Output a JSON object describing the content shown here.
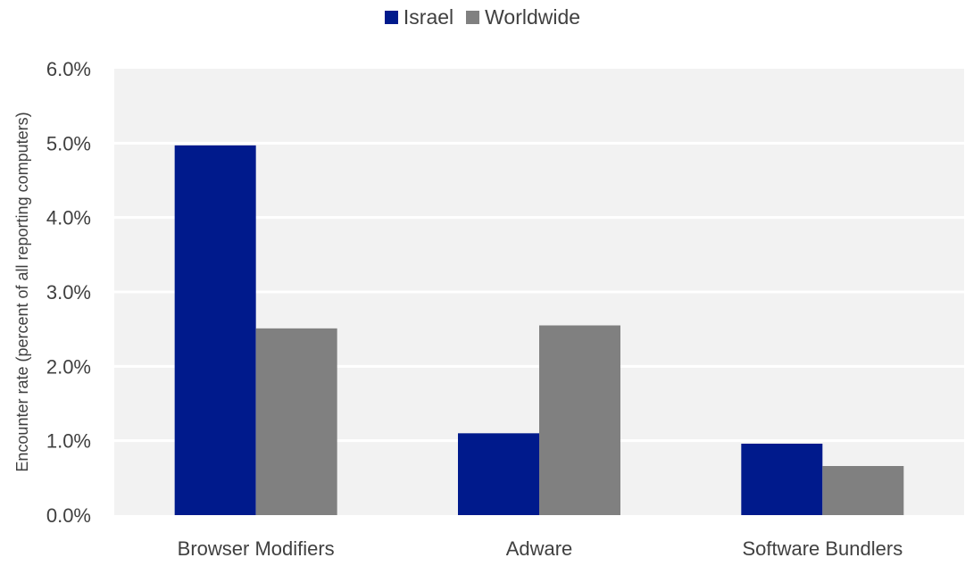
{
  "chart_data": {
    "type": "bar",
    "categories": [
      "Browser Modifiers",
      "Adware",
      "Software Bundlers"
    ],
    "series": [
      {
        "name": "Israel",
        "color": "#001a8c",
        "values": [
          4.97,
          1.1,
          0.96
        ]
      },
      {
        "name": "Worldwide",
        "color": "#808080",
        "values": [
          2.51,
          2.55,
          0.66
        ]
      }
    ],
    "title": "",
    "xlabel": "",
    "ylabel": "Encounter rate (percent of all reporting computers)",
    "ylim": [
      0,
      6
    ],
    "yticks": [
      "0.0%",
      "1.0%",
      "2.0%",
      "3.0%",
      "4.0%",
      "5.0%",
      "6.0%"
    ],
    "grid": true,
    "legend": "top-center",
    "plot_background": "#f2f2f2"
  }
}
